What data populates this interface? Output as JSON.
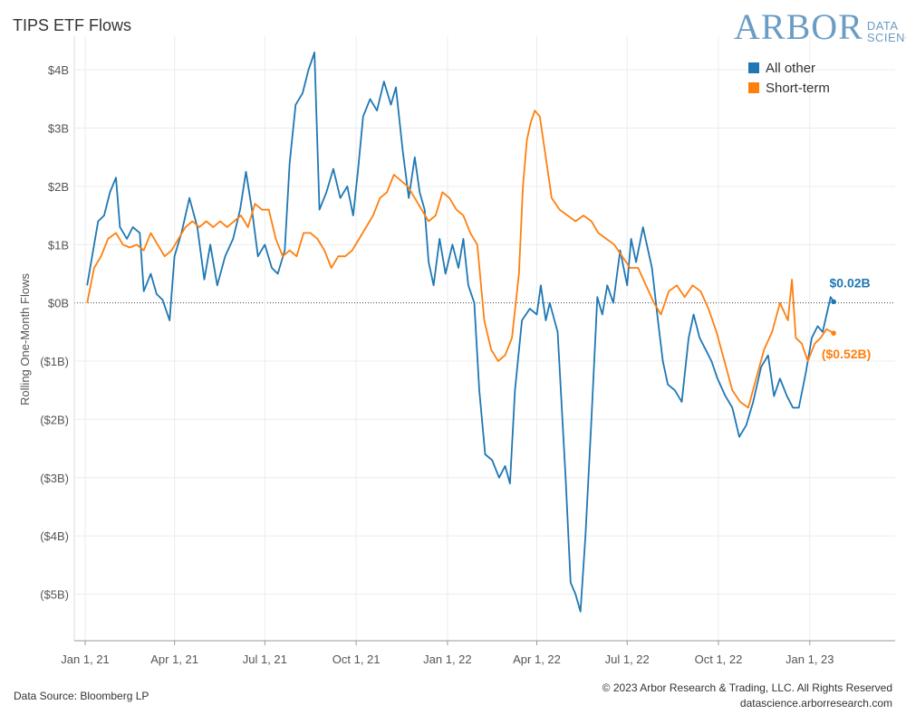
{
  "title": "TIPS ETF Flows",
  "logo": {
    "main": "ARBOR",
    "sub1": "DATA",
    "sub2": "SCIENCE"
  },
  "footer": {
    "source": "Data Source: Bloomberg LP",
    "copyright": "© 2023 Arbor Research & Trading, LLC. All Rights Reserved",
    "site": "datascience.arborresearch.com"
  },
  "chart_data": {
    "type": "line",
    "title": "TIPS ETF Flows",
    "ylabel": "Rolling One-Month Flows",
    "xlabel": "",
    "ylim": [
      -5.8,
      4.5
    ],
    "yticks": [
      4,
      3,
      2,
      1,
      0,
      -1,
      -2,
      -3,
      -4,
      -5
    ],
    "ytick_labels": [
      "$4B",
      "$3B",
      "$2B",
      "$1B",
      "$0B",
      "($1B)",
      "($2B)",
      "($3B)",
      "($4B)",
      "($5B)"
    ],
    "xticks": [
      "2021-01-01",
      "2021-04-01",
      "2021-07-01",
      "2021-10-01",
      "2022-01-01",
      "2022-04-01",
      "2022-07-01",
      "2022-10-01",
      "2023-01-01"
    ],
    "xtick_labels": [
      "Jan 1, 21",
      "Apr 1, 21",
      "Jul 1, 21",
      "Oct 1, 21",
      "Jan 1, 22",
      "Apr 1, 22",
      "Jul 1, 22",
      "Oct 1, 22",
      "Jan 1, 23"
    ],
    "xlim": [
      "2020-12-21",
      "2023-03-28"
    ],
    "legend_position": "top-right",
    "series": [
      {
        "name": "All other",
        "color": "#1f77b4",
        "end_label": "$0.02B",
        "points": [
          [
            "2021-01-03",
            0.3
          ],
          [
            "2021-01-08",
            0.8
          ],
          [
            "2021-01-14",
            1.4
          ],
          [
            "2021-01-20",
            1.5
          ],
          [
            "2021-01-26",
            1.9
          ],
          [
            "2021-02-01",
            2.15
          ],
          [
            "2021-02-05",
            1.3
          ],
          [
            "2021-02-12",
            1.1
          ],
          [
            "2021-02-18",
            1.3
          ],
          [
            "2021-02-25",
            1.2
          ],
          [
            "2021-03-01",
            0.2
          ],
          [
            "2021-03-08",
            0.5
          ],
          [
            "2021-03-14",
            0.15
          ],
          [
            "2021-03-20",
            0.05
          ],
          [
            "2021-03-27",
            -0.3
          ],
          [
            "2021-04-01",
            0.8
          ],
          [
            "2021-04-08",
            1.2
          ],
          [
            "2021-04-16",
            1.8
          ],
          [
            "2021-04-24",
            1.3
          ],
          [
            "2021-05-01",
            0.4
          ],
          [
            "2021-05-07",
            1.0
          ],
          [
            "2021-05-14",
            0.3
          ],
          [
            "2021-05-22",
            0.8
          ],
          [
            "2021-05-30",
            1.1
          ],
          [
            "2021-06-06",
            1.6
          ],
          [
            "2021-06-12",
            2.25
          ],
          [
            "2021-06-18",
            1.6
          ],
          [
            "2021-06-24",
            0.8
          ],
          [
            "2021-07-01",
            1.0
          ],
          [
            "2021-07-08",
            0.6
          ],
          [
            "2021-07-14",
            0.5
          ],
          [
            "2021-07-21",
            0.9
          ],
          [
            "2021-07-26",
            2.4
          ],
          [
            "2021-08-01",
            3.4
          ],
          [
            "2021-08-08",
            3.6
          ],
          [
            "2021-08-14",
            4.0
          ],
          [
            "2021-08-20",
            4.3
          ],
          [
            "2021-08-25",
            1.6
          ],
          [
            "2021-09-01",
            1.9
          ],
          [
            "2021-09-08",
            2.3
          ],
          [
            "2021-09-15",
            1.8
          ],
          [
            "2021-09-22",
            2.0
          ],
          [
            "2021-09-28",
            1.5
          ],
          [
            "2021-10-03",
            2.3
          ],
          [
            "2021-10-08",
            3.2
          ],
          [
            "2021-10-15",
            3.5
          ],
          [
            "2021-10-22",
            3.3
          ],
          [
            "2021-10-29",
            3.8
          ],
          [
            "2021-11-05",
            3.4
          ],
          [
            "2021-11-10",
            3.7
          ],
          [
            "2021-11-17",
            2.6
          ],
          [
            "2021-11-23",
            1.8
          ],
          [
            "2021-11-29",
            2.5
          ],
          [
            "2021-12-04",
            1.9
          ],
          [
            "2021-12-09",
            1.6
          ],
          [
            "2021-12-13",
            0.7
          ],
          [
            "2021-12-18",
            0.3
          ],
          [
            "2021-12-24",
            1.1
          ],
          [
            "2021-12-30",
            0.5
          ],
          [
            "2022-01-06",
            1.0
          ],
          [
            "2022-01-12",
            0.6
          ],
          [
            "2022-01-17",
            1.1
          ],
          [
            "2022-01-22",
            0.3
          ],
          [
            "2022-01-28",
            0.0
          ],
          [
            "2022-02-02",
            -1.5
          ],
          [
            "2022-02-08",
            -2.6
          ],
          [
            "2022-02-15",
            -2.7
          ],
          [
            "2022-02-22",
            -3.0
          ],
          [
            "2022-02-28",
            -2.8
          ],
          [
            "2022-03-05",
            -3.1
          ],
          [
            "2022-03-10",
            -1.5
          ],
          [
            "2022-03-17",
            -0.3
          ],
          [
            "2022-03-25",
            -0.1
          ],
          [
            "2022-04-01",
            -0.2
          ],
          [
            "2022-04-05",
            0.3
          ],
          [
            "2022-04-10",
            -0.3
          ],
          [
            "2022-04-14",
            0.0
          ],
          [
            "2022-04-22",
            -0.5
          ],
          [
            "2022-04-30",
            -3.0
          ],
          [
            "2022-05-05",
            -4.8
          ],
          [
            "2022-05-10",
            -5.0
          ],
          [
            "2022-05-15",
            -5.3
          ],
          [
            "2022-05-20",
            -4.0
          ],
          [
            "2022-05-26",
            -2.0
          ],
          [
            "2022-06-01",
            0.1
          ],
          [
            "2022-06-06",
            -0.2
          ],
          [
            "2022-06-11",
            0.3
          ],
          [
            "2022-06-17",
            0.0
          ],
          [
            "2022-06-24",
            0.9
          ],
          [
            "2022-07-01",
            0.3
          ],
          [
            "2022-07-05",
            1.1
          ],
          [
            "2022-07-10",
            0.7
          ],
          [
            "2022-07-17",
            1.3
          ],
          [
            "2022-07-26",
            0.6
          ],
          [
            "2022-08-01",
            -0.3
          ],
          [
            "2022-08-06",
            -1.0
          ],
          [
            "2022-08-11",
            -1.4
          ],
          [
            "2022-08-18",
            -1.5
          ],
          [
            "2022-08-25",
            -1.7
          ],
          [
            "2022-09-01",
            -0.6
          ],
          [
            "2022-09-06",
            -0.2
          ],
          [
            "2022-09-12",
            -0.6
          ],
          [
            "2022-09-18",
            -0.8
          ],
          [
            "2022-09-24",
            -1.0
          ],
          [
            "2022-09-30",
            -1.3
          ],
          [
            "2022-10-08",
            -1.6
          ],
          [
            "2022-10-15",
            -1.8
          ],
          [
            "2022-10-22",
            -2.3
          ],
          [
            "2022-10-29",
            -2.1
          ],
          [
            "2022-11-05",
            -1.7
          ],
          [
            "2022-11-13",
            -1.1
          ],
          [
            "2022-11-20",
            -0.9
          ],
          [
            "2022-11-26",
            -1.6
          ],
          [
            "2022-12-02",
            -1.3
          ],
          [
            "2022-12-09",
            -1.6
          ],
          [
            "2022-12-15",
            -1.8
          ],
          [
            "2022-12-21",
            -1.8
          ],
          [
            "2022-12-28",
            -1.2
          ],
          [
            "2023-01-03",
            -0.6
          ],
          [
            "2023-01-09",
            -0.4
          ],
          [
            "2023-01-14",
            -0.5
          ],
          [
            "2023-01-18",
            -0.2
          ],
          [
            "2023-01-22",
            0.1
          ],
          [
            "2023-01-25",
            0.02
          ]
        ]
      },
      {
        "name": "Short-term",
        "color": "#ff7f0e",
        "end_label": "($0.52B)",
        "points": [
          [
            "2021-01-03",
            0.0
          ],
          [
            "2021-01-10",
            0.6
          ],
          [
            "2021-01-17",
            0.8
          ],
          [
            "2021-01-24",
            1.1
          ],
          [
            "2021-02-01",
            1.2
          ],
          [
            "2021-02-08",
            1.0
          ],
          [
            "2021-02-15",
            0.95
          ],
          [
            "2021-02-22",
            1.0
          ],
          [
            "2021-03-01",
            0.9
          ],
          [
            "2021-03-08",
            1.2
          ],
          [
            "2021-03-15",
            1.0
          ],
          [
            "2021-03-22",
            0.8
          ],
          [
            "2021-03-29",
            0.9
          ],
          [
            "2021-04-05",
            1.1
          ],
          [
            "2021-04-12",
            1.3
          ],
          [
            "2021-04-19",
            1.4
          ],
          [
            "2021-04-26",
            1.3
          ],
          [
            "2021-05-03",
            1.4
          ],
          [
            "2021-05-10",
            1.3
          ],
          [
            "2021-05-17",
            1.4
          ],
          [
            "2021-05-24",
            1.3
          ],
          [
            "2021-05-31",
            1.4
          ],
          [
            "2021-06-07",
            1.5
          ],
          [
            "2021-06-14",
            1.3
          ],
          [
            "2021-06-21",
            1.7
          ],
          [
            "2021-06-28",
            1.6
          ],
          [
            "2021-07-05",
            1.6
          ],
          [
            "2021-07-12",
            1.1
          ],
          [
            "2021-07-19",
            0.8
          ],
          [
            "2021-07-26",
            0.9
          ],
          [
            "2021-08-02",
            0.8
          ],
          [
            "2021-08-09",
            1.2
          ],
          [
            "2021-08-16",
            1.2
          ],
          [
            "2021-08-23",
            1.1
          ],
          [
            "2021-08-30",
            0.9
          ],
          [
            "2021-09-06",
            0.6
          ],
          [
            "2021-09-13",
            0.8
          ],
          [
            "2021-09-20",
            0.8
          ],
          [
            "2021-09-27",
            0.9
          ],
          [
            "2021-10-04",
            1.1
          ],
          [
            "2021-10-11",
            1.3
          ],
          [
            "2021-10-18",
            1.5
          ],
          [
            "2021-10-25",
            1.8
          ],
          [
            "2021-11-01",
            1.9
          ],
          [
            "2021-11-08",
            2.2
          ],
          [
            "2021-11-15",
            2.1
          ],
          [
            "2021-11-22",
            2.0
          ],
          [
            "2021-11-29",
            1.8
          ],
          [
            "2021-12-06",
            1.6
          ],
          [
            "2021-12-13",
            1.4
          ],
          [
            "2021-12-20",
            1.5
          ],
          [
            "2021-12-27",
            1.9
          ],
          [
            "2022-01-03",
            1.8
          ],
          [
            "2022-01-10",
            1.6
          ],
          [
            "2022-01-17",
            1.5
          ],
          [
            "2022-01-24",
            1.2
          ],
          [
            "2022-01-31",
            1.0
          ],
          [
            "2022-02-07",
            -0.3
          ],
          [
            "2022-02-14",
            -0.8
          ],
          [
            "2022-02-21",
            -1.0
          ],
          [
            "2022-02-28",
            -0.9
          ],
          [
            "2022-03-07",
            -0.6
          ],
          [
            "2022-03-14",
            0.5
          ],
          [
            "2022-03-18",
            2.0
          ],
          [
            "2022-03-22",
            2.8
          ],
          [
            "2022-03-26",
            3.1
          ],
          [
            "2022-03-30",
            3.3
          ],
          [
            "2022-04-04",
            3.2
          ],
          [
            "2022-04-10",
            2.5
          ],
          [
            "2022-04-16",
            1.8
          ],
          [
            "2022-04-24",
            1.6
          ],
          [
            "2022-05-02",
            1.5
          ],
          [
            "2022-05-10",
            1.4
          ],
          [
            "2022-05-18",
            1.5
          ],
          [
            "2022-05-26",
            1.4
          ],
          [
            "2022-06-02",
            1.2
          ],
          [
            "2022-06-10",
            1.1
          ],
          [
            "2022-06-18",
            1.0
          ],
          [
            "2022-06-26",
            0.8
          ],
          [
            "2022-07-04",
            0.6
          ],
          [
            "2022-07-12",
            0.6
          ],
          [
            "2022-07-20",
            0.3
          ],
          [
            "2022-07-28",
            0.0
          ],
          [
            "2022-08-04",
            -0.2
          ],
          [
            "2022-08-12",
            0.2
          ],
          [
            "2022-08-20",
            0.3
          ],
          [
            "2022-08-28",
            0.1
          ],
          [
            "2022-09-05",
            0.3
          ],
          [
            "2022-09-13",
            0.2
          ],
          [
            "2022-09-21",
            -0.1
          ],
          [
            "2022-09-29",
            -0.5
          ],
          [
            "2022-10-07",
            -1.0
          ],
          [
            "2022-10-15",
            -1.5
          ],
          [
            "2022-10-23",
            -1.7
          ],
          [
            "2022-10-31",
            -1.8
          ],
          [
            "2022-11-08",
            -1.3
          ],
          [
            "2022-11-16",
            -0.8
          ],
          [
            "2022-11-24",
            -0.5
          ],
          [
            "2022-12-02",
            0.0
          ],
          [
            "2022-12-10",
            -0.3
          ],
          [
            "2022-12-14",
            0.4
          ],
          [
            "2022-12-18",
            -0.6
          ],
          [
            "2022-12-24",
            -0.7
          ],
          [
            "2022-12-30",
            -1.0
          ],
          [
            "2023-01-06",
            -0.7
          ],
          [
            "2023-01-12",
            -0.6
          ],
          [
            "2023-01-18",
            -0.45
          ],
          [
            "2023-01-25",
            -0.52
          ]
        ]
      }
    ]
  }
}
